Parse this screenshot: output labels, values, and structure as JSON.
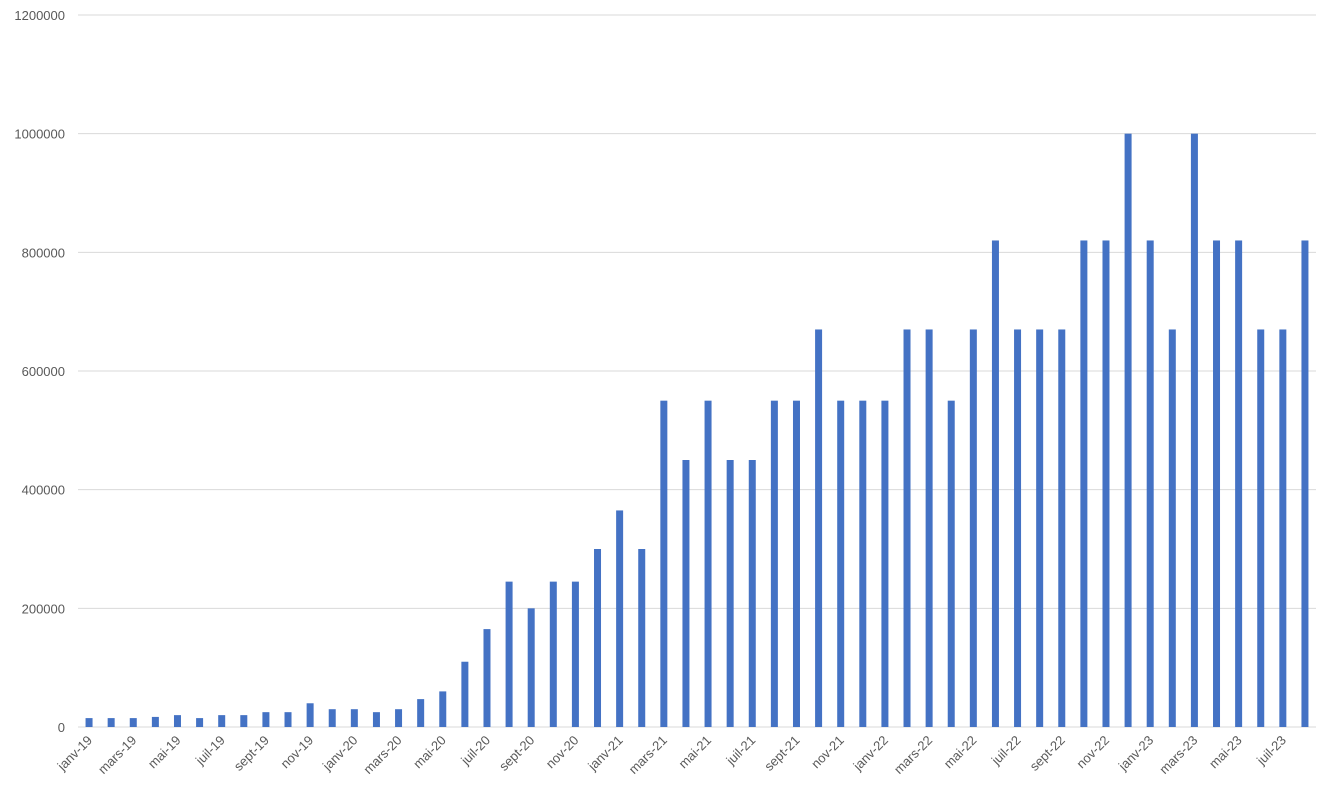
{
  "chart_data": {
    "type": "bar",
    "categories": [
      "janv-19",
      null,
      "mars-19",
      null,
      "mai-19",
      null,
      "juil-19",
      null,
      "sept-19",
      null,
      "nov-19",
      null,
      "janv-20",
      null,
      "mars-20",
      null,
      "mai-20",
      null,
      "juil-20",
      null,
      "sept-20",
      null,
      "nov-20",
      null,
      "janv-21",
      null,
      "mars-21",
      null,
      "mai-21",
      null,
      "juil-21",
      null,
      "sept-21",
      null,
      "nov-21",
      null,
      "janv-22",
      null,
      "mars-22",
      null,
      "mai-22",
      null,
      "juil-22",
      null,
      "sept-22",
      null,
      "nov-22",
      null,
      "janv-23",
      null,
      "mars-23",
      null,
      "mai-23",
      null,
      "juil-23",
      null
    ],
    "values": [
      15000,
      15000,
      15000,
      17000,
      20000,
      15000,
      20000,
      20000,
      25000,
      25000,
      40000,
      30000,
      30000,
      25000,
      30000,
      47000,
      60000,
      110000,
      165000,
      245000,
      200000,
      245000,
      245000,
      300000,
      365000,
      300000,
      550000,
      450000,
      550000,
      450000,
      450000,
      550000,
      550000,
      670000,
      550000,
      550000,
      550000,
      670000,
      670000,
      550000,
      670000,
      820000,
      670000,
      670000,
      670000,
      820000,
      820000,
      1000000,
      820000,
      670000,
      1000000,
      820000,
      820000,
      670000,
      670000,
      820000
    ],
    "color": "#4472c4",
    "ylim": [
      0,
      1200000
    ],
    "yticks": [
      0,
      200000,
      400000,
      600000,
      800000,
      1000000,
      1200000
    ],
    "grid": true
  }
}
